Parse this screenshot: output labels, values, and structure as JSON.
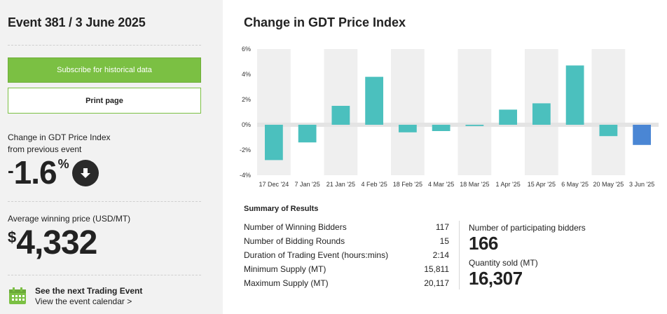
{
  "sidebar": {
    "event_title": "Event 381 / 3 June 2025",
    "subscribe_label": "Subscribe for historical data",
    "print_label": "Print page",
    "change_label_line1": "Change in GDT Price Index",
    "change_label_line2": "from previous event",
    "change_sign": "-",
    "change_value": "1.6",
    "change_unit": "%",
    "change_direction_icon": "arrow-down-icon",
    "awp_label": "Average winning price (USD/MT)",
    "awp_currency": "$",
    "awp_value": "4,332",
    "next_event_title": "See the next Trading Event",
    "next_event_link": "View the event calendar >",
    "calendar_icon": "calendar-icon"
  },
  "main": {
    "chart_title": "Change in GDT Price Index"
  },
  "colors": {
    "bar_default": "#4bc0be",
    "bar_latest": "#4a86d4",
    "accent_green": "#7bc043"
  },
  "chart_data": {
    "type": "bar",
    "categories": [
      "17 Dec '24",
      "7 Jan '25",
      "21 Jan '25",
      "4 Feb '25",
      "18 Feb '25",
      "4 Mar '25",
      "18 Mar '25",
      "1 Apr '25",
      "15 Apr '25",
      "6 May '25",
      "20 May '25",
      "3 Jun '25"
    ],
    "values": [
      -2.8,
      -1.4,
      1.5,
      3.8,
      -0.6,
      -0.5,
      -0.1,
      1.2,
      1.7,
      4.7,
      -0.9,
      -1.6
    ],
    "title": "Change in GDT Price Index",
    "y_ticks": [
      "6%",
      "4%",
      "2%",
      "0%",
      "-2%",
      "-4%"
    ],
    "y_tick_values": [
      6,
      4,
      2,
      0,
      -2,
      -4
    ],
    "ylim": [
      -4,
      6
    ],
    "grid": "alternating column bands",
    "highlight_last": true
  },
  "summary": {
    "title": "Summary of Results",
    "rows": [
      {
        "label": "Number of Winning Bidders",
        "value": "117"
      },
      {
        "label": "Number of Bidding Rounds",
        "value": "15"
      },
      {
        "label": "Duration of Trading Event (hours:mins)",
        "value": "2:14"
      },
      {
        "label": "Minimum Supply (MT)",
        "value": "15,811"
      },
      {
        "label": "Maximum Supply (MT)",
        "value": "20,117"
      }
    ],
    "participating_label": "Number of participating bidders",
    "participating_value": "166",
    "quantity_label": "Quantity sold (MT)",
    "quantity_value": "16,307"
  }
}
